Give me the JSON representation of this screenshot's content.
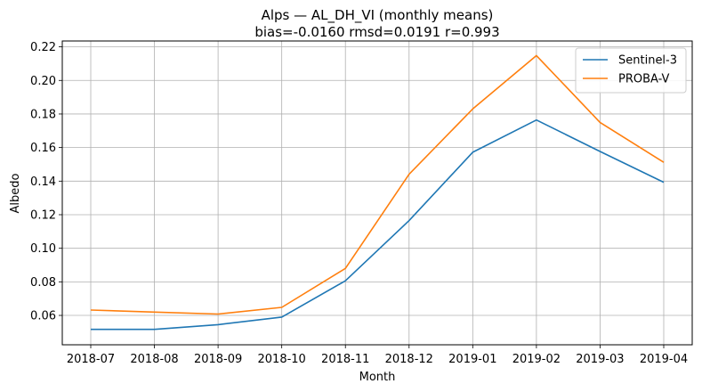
{
  "chart_data": {
    "type": "line",
    "title": "Alps — AL_DH_VI (monthly means)",
    "subtitle": "bias=-0.0160  rmsd=0.0191  r=0.993",
    "xlabel": "Month",
    "ylabel": "Albedo",
    "x": [
      "2018-07",
      "2018-08",
      "2018-09",
      "2018-10",
      "2018-11",
      "2018-12",
      "2019-01",
      "2019-02",
      "2019-03",
      "2019-04"
    ],
    "yticks": [
      "0.06",
      "0.08",
      "0.10",
      "0.12",
      "0.14",
      "0.16",
      "0.18",
      "0.20",
      "0.22"
    ],
    "ylim": [
      0.0425,
      0.2235
    ],
    "grid": true,
    "legend_position": "top-right",
    "series": [
      {
        "name": "Sentinel-3",
        "color": "#1f77b4",
        "values": [
          0.0517,
          0.0517,
          0.0545,
          0.059,
          0.0806,
          0.1165,
          0.1572,
          0.1764,
          0.1577,
          0.1393
        ]
      },
      {
        "name": "PROBA-V",
        "color": "#ff7f0e",
        "values": [
          0.0632,
          0.062,
          0.0608,
          0.0648,
          0.088,
          0.1441,
          0.183,
          0.2148,
          0.175,
          0.1512
        ]
      }
    ]
  }
}
